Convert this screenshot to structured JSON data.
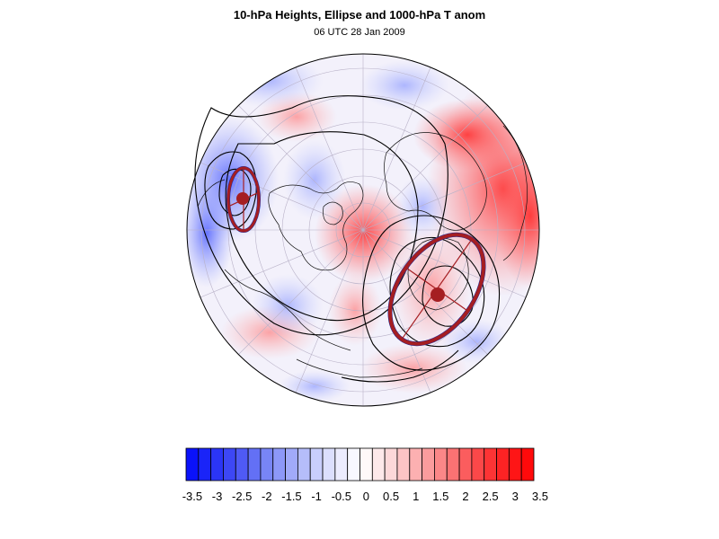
{
  "header": {
    "title": "10-hPa Heights, Ellipse and 1000-hPa T anom",
    "subtitle": "06 UTC 28 Jan 2009"
  },
  "map": {
    "projection": "polar stereographic (North Pole, orthographic globe view)",
    "fields": [
      "10-hPa geopotential height contours",
      "vortex ellipse",
      "1000-hPa temperature anomaly shading"
    ],
    "colors": {
      "ellipse": "#a51e22",
      "ellipse_outline": "#1a2a9a",
      "contour": "#000000"
    },
    "ellipses": [
      {
        "name": "western vortex ellipse"
      },
      {
        "name": "eastern vortex ellipse"
      }
    ]
  },
  "colorbar": {
    "levels": [
      -3.5,
      -3.25,
      -3,
      -2.75,
      -2.5,
      -2.25,
      -2,
      -1.75,
      -1.5,
      -1.25,
      -1,
      -0.75,
      -0.5,
      -0.25,
      0,
      0.25,
      0.5,
      0.75,
      1,
      1.25,
      1.5,
      1.75,
      2,
      2.25,
      2.5,
      2.75,
      3,
      3.25,
      3.5
    ],
    "labels": [
      "-3.5",
      "-3",
      "-2.5",
      "-2",
      "-1.5",
      "-1",
      "-0.5",
      "0",
      "0.5",
      "1",
      "1.5",
      "2",
      "2.5",
      "3",
      "3.5"
    ],
    "colors": [
      "#0a12fa",
      "#1a24f8",
      "#2b35f6",
      "#3d47f5",
      "#4f5af5",
      "#6370f5",
      "#7885f6",
      "#8d98f8",
      "#a1aaf9",
      "#b5bdfa",
      "#c9cefc",
      "#dcdffd",
      "#ececfe",
      "#f8f8ff",
      "#fff9f9",
      "#fde9ea",
      "#fcd8d9",
      "#fcc4c5",
      "#fcb0b1",
      "#fb9c9d",
      "#fb8788",
      "#fb7273",
      "#fb5d5e",
      "#fb4849",
      "#fc3435",
      "#fd2324",
      "#fe1516",
      "#ff0a0b"
    ]
  }
}
